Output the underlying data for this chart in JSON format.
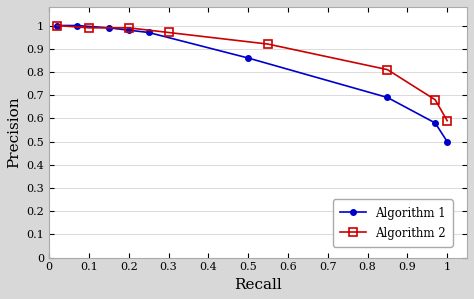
{
  "algo1_recall": [
    0.02,
    0.07,
    0.15,
    0.2,
    0.25,
    0.5,
    0.85,
    0.97,
    1.0
  ],
  "algo1_precision": [
    1.0,
    1.0,
    0.99,
    0.98,
    0.97,
    0.86,
    0.69,
    0.58,
    0.5
  ],
  "algo2_recall": [
    0.02,
    0.1,
    0.2,
    0.3,
    0.55,
    0.85,
    0.97,
    1.0
  ],
  "algo2_precision": [
    1.0,
    0.99,
    0.99,
    0.97,
    0.92,
    0.81,
    0.68,
    0.59
  ],
  "algo1_color": "#0000cc",
  "algo2_color": "#cc0000",
  "xlabel": "Recall",
  "ylabel": "Precision",
  "xlim": [
    0,
    1.05
  ],
  "ylim": [
    0,
    1.08
  ],
  "xticks": [
    0,
    0.1,
    0.2,
    0.3,
    0.4,
    0.5,
    0.6,
    0.7,
    0.8,
    0.9,
    1.0
  ],
  "yticks": [
    0,
    0.1,
    0.2,
    0.3,
    0.4,
    0.5,
    0.6,
    0.7,
    0.8,
    0.9,
    1.0
  ],
  "legend_algo1": "Algorithm 1",
  "legend_algo2": "Algorithm 2",
  "bg_color": "#ffffff",
  "fig_bg_color": "#d8d8d8"
}
